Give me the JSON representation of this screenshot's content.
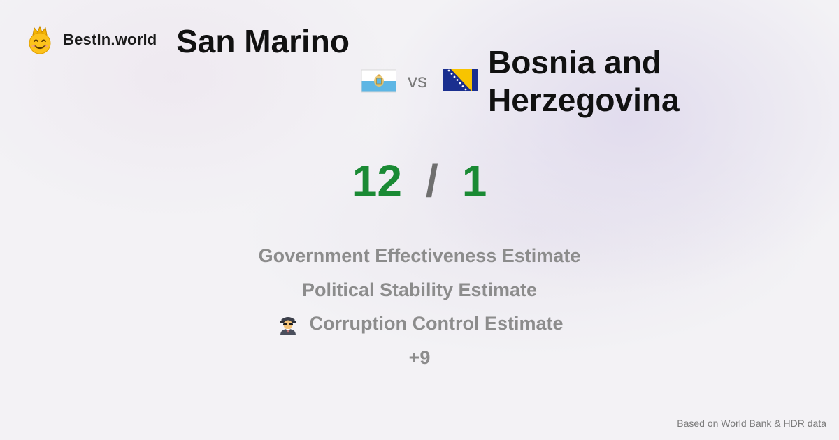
{
  "brand": {
    "name": "BestIn.world",
    "icon": "crown-smiley-icon"
  },
  "matchup": {
    "country_a": "San Marino",
    "country_a_flag": "san-marino-flag-icon",
    "vs_label": "vs",
    "country_b_line1": "Bosnia and",
    "country_b_line2": "Herzegovina",
    "country_b_flag": "bosnia-flag-icon"
  },
  "score": {
    "a": "12",
    "separator": "/",
    "b": "1",
    "color": "#1a8a34"
  },
  "metrics": [
    {
      "label": "Government Effectiveness Estimate"
    },
    {
      "label": "Political Stability Estimate"
    },
    {
      "label": "Corruption Control Estimate",
      "icon": "spy-icon"
    },
    {
      "label": "+9"
    }
  ],
  "footer": {
    "source": "Based on World Bank & HDR data"
  }
}
